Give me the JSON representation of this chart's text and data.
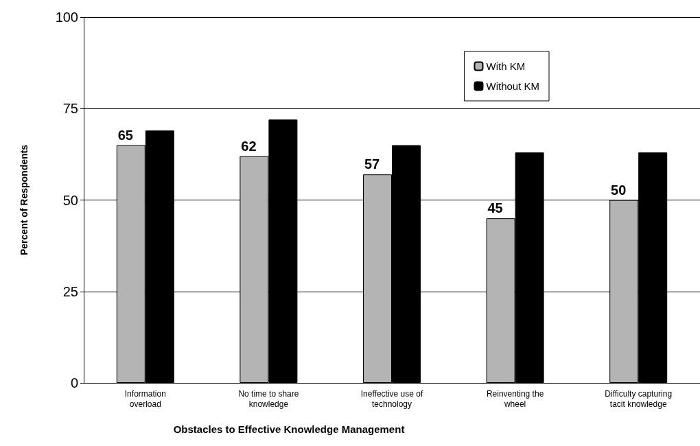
{
  "chart_data": {
    "type": "bar",
    "xlabel": "Obstacles to Effective Knowledge Management",
    "ylabel": "Percent of Respondents",
    "categories": [
      "Information\noverload",
      "No time to share\nknowledge",
      "Ineffective use of\ntechnology",
      "Reinventing the\nwheel",
      "Difficulty capturing\ntacit knowledge"
    ],
    "series": [
      {
        "name": "With KM",
        "color": "#b4b4b4",
        "values": [
          65,
          62,
          57,
          45,
          50
        ],
        "value_labels": [
          "65",
          "62",
          "57",
          "45",
          "50"
        ]
      },
      {
        "name": "Without KM",
        "color": "#000000",
        "values": [
          69,
          72,
          65,
          63,
          63
        ]
      }
    ],
    "ylim": [
      0,
      100
    ],
    "yticks": [
      0,
      25,
      50,
      75,
      100
    ],
    "grid": "y",
    "legend": "top right"
  }
}
